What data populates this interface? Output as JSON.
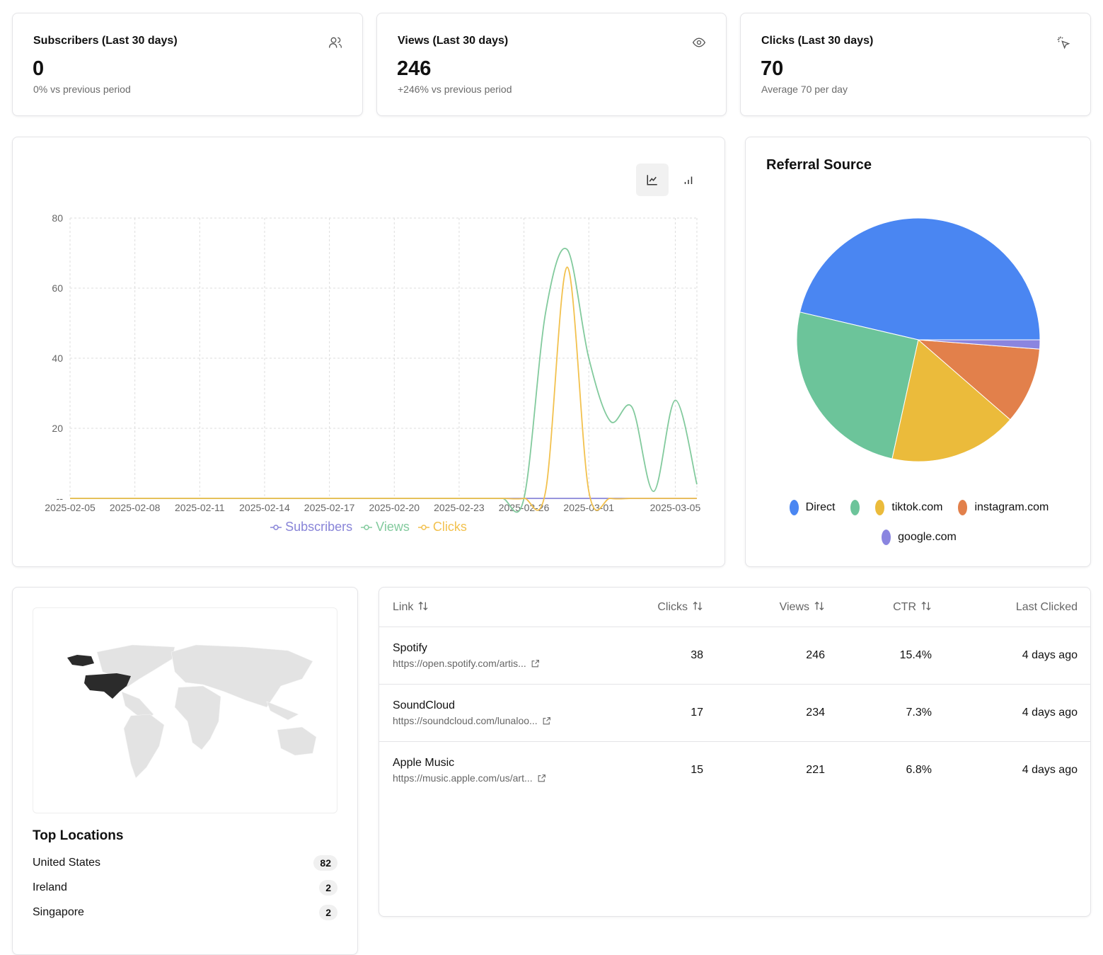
{
  "stats": [
    {
      "title": "Subscribers (Last 30 days)",
      "value": 0,
      "note": "0% vs previous period"
    },
    {
      "title": "Views (Last 30 days)",
      "value": 246,
      "note": "+246% vs previous period"
    },
    {
      "title": "Clicks (Last 30 days)",
      "value": 70,
      "note": "Average 70 per day"
    }
  ],
  "chart_data": [
    {
      "type": "line",
      "categories": [
        "2025-02-05",
        null,
        null,
        "2025-02-08",
        null,
        null,
        "2025-02-11",
        null,
        null,
        "2025-02-14",
        null,
        null,
        "2025-02-17",
        null,
        null,
        "2025-02-20",
        null,
        null,
        "2025-02-23",
        null,
        null,
        "2025-02-26",
        null,
        null,
        "2025-03-01",
        null,
        null,
        null,
        "2025-03-05",
        null
      ],
      "series": [
        {
          "name": "Subscribers",
          "color": "#8884d8",
          "values": [
            0,
            0,
            0,
            0,
            0,
            0,
            0,
            0,
            0,
            0,
            0,
            0,
            0,
            0,
            0,
            0,
            0,
            0,
            0,
            0,
            0,
            0,
            0,
            0,
            0,
            0,
            0,
            0,
            0,
            0
          ]
        },
        {
          "name": "Views",
          "color": "#82ca9d",
          "values": [
            0,
            0,
            0,
            0,
            0,
            0,
            0,
            0,
            0,
            0,
            0,
            0,
            0,
            0,
            0,
            0,
            0,
            0,
            0,
            0,
            0,
            0,
            53,
            71,
            40,
            22,
            26,
            2,
            28,
            4
          ]
        },
        {
          "name": "Clicks",
          "color": "#f2c14e",
          "values": [
            0,
            0,
            0,
            0,
            0,
            0,
            0,
            0,
            0,
            0,
            0,
            0,
            0,
            0,
            0,
            0,
            0,
            0,
            0,
            0,
            0,
            0,
            2,
            66,
            2,
            0,
            0,
            0,
            0,
            0
          ]
        }
      ],
      "ylim": [
        0,
        80
      ],
      "yticks": [
        {
          "value": 0,
          "label": "--"
        },
        20,
        40,
        60,
        80
      ],
      "grid": true
    },
    {
      "type": "pie",
      "title": "Referral Source",
      "categories": [
        "Direct",
        null,
        "tiktok.com",
        "instagram.com",
        "google.com"
      ],
      "values": [
        114,
        62,
        42,
        25,
        3
      ],
      "colors": [
        "#4a86f2",
        "#6cc49a",
        "#ebbb3b",
        "#e2804b",
        "#8a85e0"
      ]
    }
  ],
  "locations": {
    "title": "Top Locations",
    "rows": [
      {
        "country": "United States",
        "count": 82
      },
      {
        "country": "Ireland",
        "count": 2
      },
      {
        "country": "Singapore",
        "count": 2
      }
    ]
  },
  "table": {
    "columns": [
      "Link",
      "Clicks",
      "Views",
      "CTR",
      "Last Clicked"
    ],
    "rows": [
      {
        "name": "Spotify",
        "url": "https://open.spotify.com/artis...",
        "clicks": 38,
        "views": 246,
        "ctr": "15.4%",
        "last": "4 days ago"
      },
      {
        "name": "SoundCloud",
        "url": "https://soundcloud.com/lunaloo...",
        "clicks": 17,
        "views": 234,
        "ctr": "7.3%",
        "last": "4 days ago"
      },
      {
        "name": "Apple Music",
        "url": "https://music.apple.com/us/art...",
        "clicks": 15,
        "views": 221,
        "ctr": "6.8%",
        "last": "4 days ago"
      }
    ]
  }
}
